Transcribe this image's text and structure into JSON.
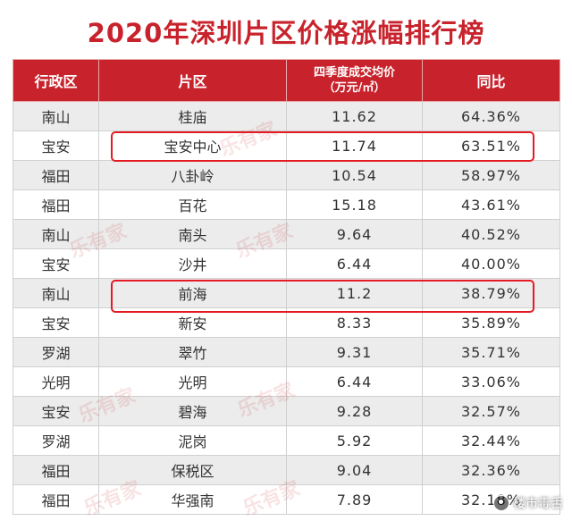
{
  "title": "2020年深圳片区价格涨幅排行榜",
  "table": {
    "headers": {
      "district": "行政区",
      "area": "片区",
      "price_line1": "四季度成交均价",
      "price_line2": "（万元/㎡）",
      "yoy": "同比"
    },
    "rows": [
      {
        "district": "南山",
        "area": "桂庙",
        "price": "11.62",
        "yoy": "64.36%"
      },
      {
        "district": "宝安",
        "area": "宝安中心",
        "price": "11.74",
        "yoy": "63.51%"
      },
      {
        "district": "福田",
        "area": "八卦岭",
        "price": "10.54",
        "yoy": "58.97%"
      },
      {
        "district": "福田",
        "area": "百花",
        "price": "15.18",
        "yoy": "43.61%"
      },
      {
        "district": "南山",
        "area": "南头",
        "price": "9.64",
        "yoy": "40.52%"
      },
      {
        "district": "宝安",
        "area": "沙井",
        "price": "6.44",
        "yoy": "40.00%"
      },
      {
        "district": "南山",
        "area": "前海",
        "price": "11.2",
        "yoy": "38.79%"
      },
      {
        "district": "宝安",
        "area": "新安",
        "price": "8.33",
        "yoy": "35.89%"
      },
      {
        "district": "罗湖",
        "area": "翠竹",
        "price": "9.31",
        "yoy": "35.71%"
      },
      {
        "district": "光明",
        "area": "光明",
        "price": "6.44",
        "yoy": "33.06%"
      },
      {
        "district": "宝安",
        "area": "碧海",
        "price": "9.28",
        "yoy": "32.57%"
      },
      {
        "district": "罗湖",
        "area": "泥岗",
        "price": "5.92",
        "yoy": "32.44%"
      },
      {
        "district": "福田",
        "area": "保税区",
        "price": "9.04",
        "yoy": "32.36%"
      },
      {
        "district": "福田",
        "area": "华强南",
        "price": "7.89",
        "yoy": "32.18%"
      }
    ]
  },
  "highlighted_areas": [
    "宝安中心",
    "前海"
  ],
  "watermark_text": "乐有家",
  "source_badge": "楼市毒舌",
  "colors": {
    "accent": "#c8232c",
    "highlight_border": "#e41b23",
    "row_alt": "#ececec"
  }
}
